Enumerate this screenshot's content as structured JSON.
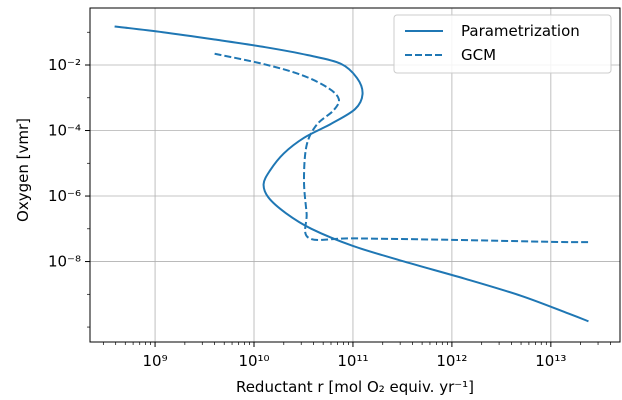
{
  "chart_data": {
    "type": "line",
    "xscale": "log",
    "yscale": "log",
    "xlim": [
      220000000.0,
      50000000000000.0
    ],
    "ylim": [
      3.5e-11,
      0.55
    ],
    "grid": true,
    "legend_position": "top-right",
    "xlabel": "Reductant r [mol O₂ equiv. yr⁻¹]",
    "ylabel": "Oxygen [vmr]",
    "xticks": [
      {
        "value": 1000000000.0,
        "label": "10⁹"
      },
      {
        "value": 10000000000.0,
        "label": "10¹⁰"
      },
      {
        "value": 100000000000.0,
        "label": "10¹¹"
      },
      {
        "value": 1000000000000.0,
        "label": "10¹²"
      },
      {
        "value": 10000000000000.0,
        "label": "10¹³"
      }
    ],
    "yticks": [
      {
        "value": 0.01,
        "label": "10⁻²"
      },
      {
        "value": 0.0001,
        "label": "10⁻⁴"
      },
      {
        "value": 1e-06,
        "label": "10⁻⁶"
      },
      {
        "value": 1e-08,
        "label": "10⁻⁸"
      }
    ],
    "series": [
      {
        "name": "Parametrization",
        "color": "#1f77b4",
        "style": "solid",
        "points": [
          [
            390000000.0,
            0.15
          ],
          [
            1200000000.0,
            0.1
          ],
          [
            4000000000.0,
            0.06
          ],
          [
            13000000000.0,
            0.035
          ],
          [
            35000000000.0,
            0.02
          ],
          [
            75000000000.0,
            0.011
          ],
          [
            110000000000.0,
            0.004
          ],
          [
            125000000000.0,
            0.0013
          ],
          [
            105000000000.0,
            0.00045
          ],
          [
            60000000000.0,
            0.00016
          ],
          [
            32000000000.0,
            6e-05
          ],
          [
            20000000000.0,
            2e-05
          ],
          [
            14500000000.0,
            6e-06
          ],
          [
            12500000000.0,
            2.3e-06
          ],
          [
            14000000000.0,
            9e-07
          ],
          [
            21000000000.0,
            3e-07
          ],
          [
            38000000000.0,
            1e-07
          ],
          [
            100000000000.0,
            3e-08
          ],
          [
            330000000000.0,
            1e-08
          ],
          [
            1350000000000.0,
            3e-09
          ],
          [
            5000000000000.0,
            9e-10
          ],
          [
            15000000000000.0,
            2.6e-10
          ],
          [
            24000000000000.0,
            1.5e-10
          ]
        ]
      },
      {
        "name": "GCM",
        "color": "#1f77b4",
        "style": "dashed",
        "points": [
          [
            4000000000.0,
            0.022
          ],
          [
            12000000000.0,
            0.011
          ],
          [
            30000000000.0,
            0.005
          ],
          [
            56000000000.0,
            0.002
          ],
          [
            72000000000.0,
            0.0009
          ],
          [
            63000000000.0,
            0.0004
          ],
          [
            43000000000.0,
            0.00015
          ],
          [
            34000000000.0,
            3.5e-05
          ],
          [
            32000000000.0,
            3e-06
          ],
          [
            34000000000.0,
            3e-07
          ],
          [
            36000000000.0,
            5.2e-08
          ],
          [
            100000000000.0,
            5.1e-08
          ],
          [
            1000000000000.0,
            4.6e-08
          ],
          [
            10000000000000.0,
            4e-08
          ],
          [
            24000000000000.0,
            3.9e-08
          ]
        ]
      }
    ]
  }
}
